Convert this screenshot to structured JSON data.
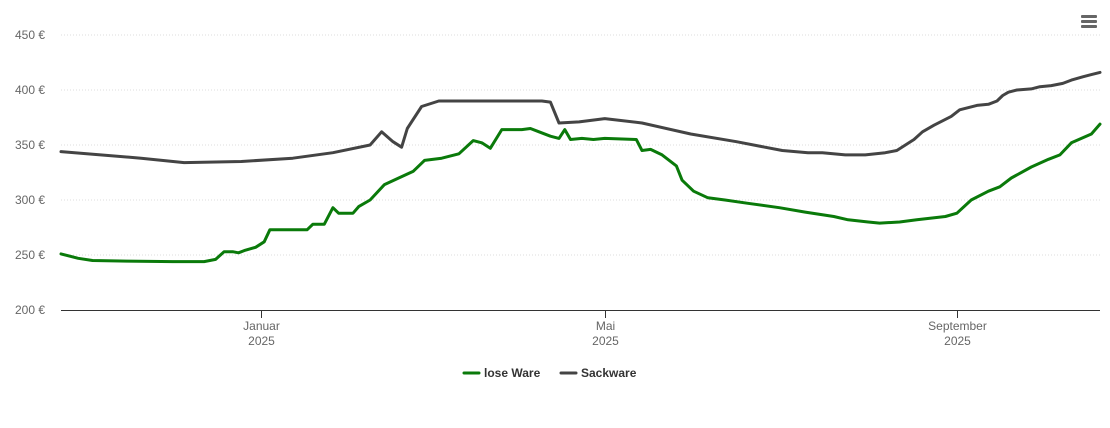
{
  "menu_icon": "hamburger-menu-icon",
  "colors": {
    "lose_ware": "#0a7a0a",
    "sackware": "#444444",
    "grid": "#dddddd",
    "axis": "#333333"
  },
  "chart_data": {
    "type": "line",
    "title": "",
    "xlabel": "",
    "ylabel": "",
    "ylim": [
      200,
      450
    ],
    "y_ticks": [
      "200 €",
      "250 €",
      "300 €",
      "350 €",
      "400 €",
      "450 €"
    ],
    "y_tick_values": [
      200,
      250,
      300,
      350,
      400,
      450
    ],
    "x_range": [
      "2024-10-23",
      "2025-10-21"
    ],
    "x_ticks": [
      {
        "date": "2025-01-01",
        "month": "Januar",
        "year": "2025"
      },
      {
        "date": "2025-05-01",
        "month": "Mai",
        "year": "2025"
      },
      {
        "date": "2025-09-01",
        "month": "September",
        "year": "2025"
      }
    ],
    "grid": true,
    "legend_position": "bottom-center",
    "series": [
      {
        "name": "lose Ware",
        "color": "#0a7a0a",
        "points": [
          [
            "2024-10-23",
            251
          ],
          [
            "2024-10-29",
            247
          ],
          [
            "2024-11-03",
            245
          ],
          [
            "2024-11-15",
            244.5
          ],
          [
            "2024-12-01",
            244
          ],
          [
            "2024-12-12",
            244
          ],
          [
            "2024-12-16",
            246
          ],
          [
            "2024-12-19",
            253
          ],
          [
            "2024-12-22",
            253
          ],
          [
            "2024-12-24",
            252
          ],
          [
            "2024-12-26",
            254
          ],
          [
            "2024-12-30",
            257
          ],
          [
            "2025-01-02",
            262
          ],
          [
            "2025-01-04",
            273
          ],
          [
            "2025-01-08",
            273
          ],
          [
            "2025-01-17",
            273
          ],
          [
            "2025-01-19",
            278
          ],
          [
            "2025-01-23",
            278
          ],
          [
            "2025-01-26",
            293
          ],
          [
            "2025-01-28",
            288
          ],
          [
            "2025-02-02",
            288
          ],
          [
            "2025-02-04",
            294
          ],
          [
            "2025-02-08",
            300
          ],
          [
            "2025-02-13",
            314
          ],
          [
            "2025-02-18",
            320
          ],
          [
            "2025-02-23",
            326
          ],
          [
            "2025-02-27",
            336
          ],
          [
            "2025-03-05",
            338
          ],
          [
            "2025-03-11",
            342
          ],
          [
            "2025-03-16",
            354
          ],
          [
            "2025-03-19",
            352
          ],
          [
            "2025-03-22",
            347
          ],
          [
            "2025-03-26",
            364
          ],
          [
            "2025-04-02",
            364
          ],
          [
            "2025-04-05",
            365
          ],
          [
            "2025-04-08",
            362
          ],
          [
            "2025-04-12",
            358
          ],
          [
            "2025-04-15",
            356
          ],
          [
            "2025-04-17",
            364
          ],
          [
            "2025-04-19",
            355
          ],
          [
            "2025-04-23",
            356
          ],
          [
            "2025-04-27",
            355
          ],
          [
            "2025-05-01",
            356
          ],
          [
            "2025-05-12",
            355
          ],
          [
            "2025-05-14",
            345
          ],
          [
            "2025-05-17",
            346
          ],
          [
            "2025-05-21",
            341
          ],
          [
            "2025-05-26",
            331
          ],
          [
            "2025-05-28",
            318
          ],
          [
            "2025-06-01",
            308
          ],
          [
            "2025-06-06",
            302
          ],
          [
            "2025-06-12",
            300
          ],
          [
            "2025-06-20",
            297
          ],
          [
            "2025-07-01",
            293
          ],
          [
            "2025-07-10",
            289
          ],
          [
            "2025-07-20",
            285
          ],
          [
            "2025-07-25",
            282
          ],
          [
            "2025-08-01",
            280
          ],
          [
            "2025-08-05",
            279
          ],
          [
            "2025-08-12",
            280
          ],
          [
            "2025-08-18",
            282
          ],
          [
            "2025-08-28",
            285
          ],
          [
            "2025-09-01",
            288
          ],
          [
            "2025-09-06",
            300
          ],
          [
            "2025-09-12",
            308
          ],
          [
            "2025-09-16",
            312
          ],
          [
            "2025-09-20",
            320
          ],
          [
            "2025-09-27",
            330
          ],
          [
            "2025-10-03",
            337
          ],
          [
            "2025-10-07",
            341
          ],
          [
            "2025-10-11",
            352
          ],
          [
            "2025-10-18",
            360
          ],
          [
            "2025-10-21",
            369
          ]
        ]
      },
      {
        "name": "Sackware",
        "color": "#444444",
        "points": [
          [
            "2024-10-23",
            344
          ],
          [
            "2024-11-01",
            342
          ],
          [
            "2024-11-20",
            338
          ],
          [
            "2024-12-05",
            334
          ],
          [
            "2024-12-25",
            335
          ],
          [
            "2025-01-12",
            338
          ],
          [
            "2025-01-26",
            343
          ],
          [
            "2025-02-08",
            350
          ],
          [
            "2025-02-12",
            362
          ],
          [
            "2025-02-16",
            353
          ],
          [
            "2025-02-19",
            348
          ],
          [
            "2025-02-21",
            365
          ],
          [
            "2025-02-26",
            385
          ],
          [
            "2025-03-04",
            390
          ],
          [
            "2025-04-09",
            390
          ],
          [
            "2025-04-12",
            389
          ],
          [
            "2025-04-15",
            370
          ],
          [
            "2025-04-22",
            371
          ],
          [
            "2025-05-01",
            374
          ],
          [
            "2025-05-14",
            370
          ],
          [
            "2025-05-31",
            360
          ],
          [
            "2025-06-16",
            353
          ],
          [
            "2025-06-24",
            349
          ],
          [
            "2025-07-02",
            345
          ],
          [
            "2025-07-11",
            343
          ],
          [
            "2025-07-16",
            343
          ],
          [
            "2025-07-24",
            341
          ],
          [
            "2025-07-31",
            341
          ],
          [
            "2025-08-07",
            343
          ],
          [
            "2025-08-11",
            345
          ],
          [
            "2025-08-14",
            350
          ],
          [
            "2025-08-17",
            355
          ],
          [
            "2025-08-20",
            362
          ],
          [
            "2025-08-24",
            368
          ],
          [
            "2025-08-27",
            372
          ],
          [
            "2025-08-30",
            376
          ],
          [
            "2025-09-02",
            382
          ],
          [
            "2025-09-08",
            386
          ],
          [
            "2025-09-12",
            387
          ],
          [
            "2025-09-15",
            390
          ],
          [
            "2025-09-17",
            395
          ],
          [
            "2025-09-19",
            398
          ],
          [
            "2025-09-22",
            400
          ],
          [
            "2025-09-27",
            401
          ],
          [
            "2025-09-30",
            403
          ],
          [
            "2025-10-04",
            404
          ],
          [
            "2025-10-08",
            406
          ],
          [
            "2025-10-11",
            409
          ],
          [
            "2025-10-15",
            412
          ],
          [
            "2025-10-18",
            414
          ],
          [
            "2025-10-21",
            416
          ]
        ]
      }
    ]
  }
}
